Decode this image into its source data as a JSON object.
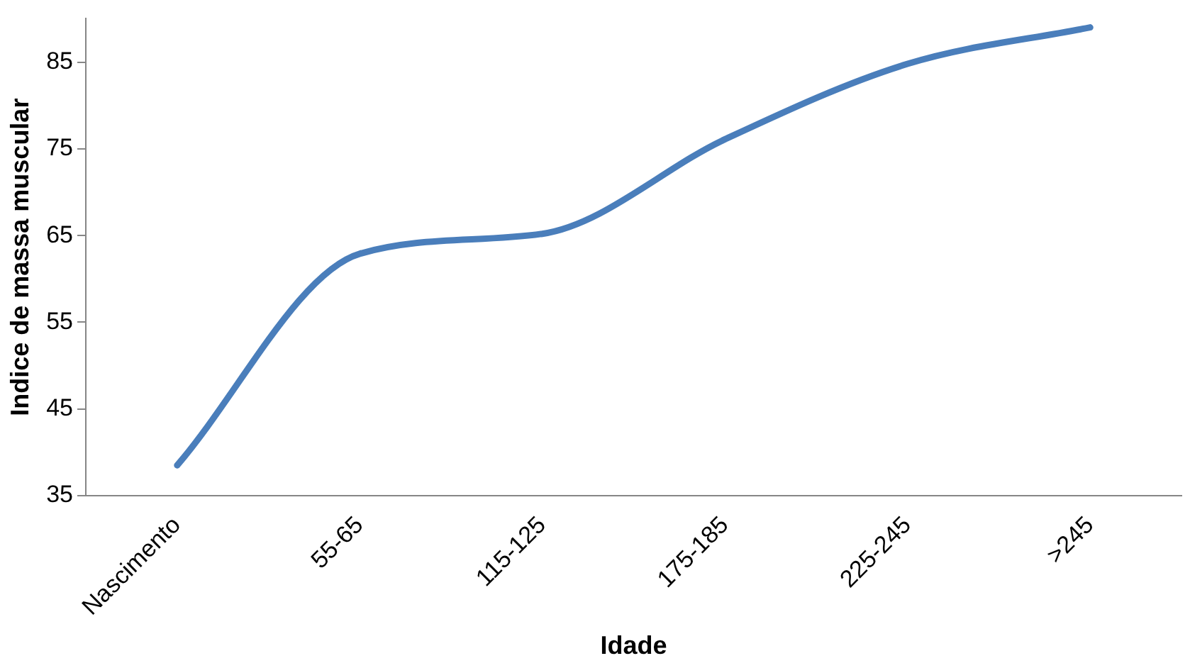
{
  "chart_data": {
    "type": "line",
    "xlabel": "Idade",
    "ylabel": "Indice de massa muscular",
    "categories": [
      "Nascimento",
      "55-65",
      "115-125",
      "175-185",
      "225-245",
      ">245"
    ],
    "series": [
      {
        "color": "#4a7ebb",
        "values": [
          38.5,
          62.9,
          65.2,
          76.1,
          84.8,
          89.0
        ]
      }
    ],
    "ylim": [
      35,
      90
    ],
    "yticks": [
      35,
      45,
      55,
      65,
      75,
      85
    ],
    "grid": false,
    "legend": false,
    "marker": "none",
    "line_style": "solid"
  }
}
